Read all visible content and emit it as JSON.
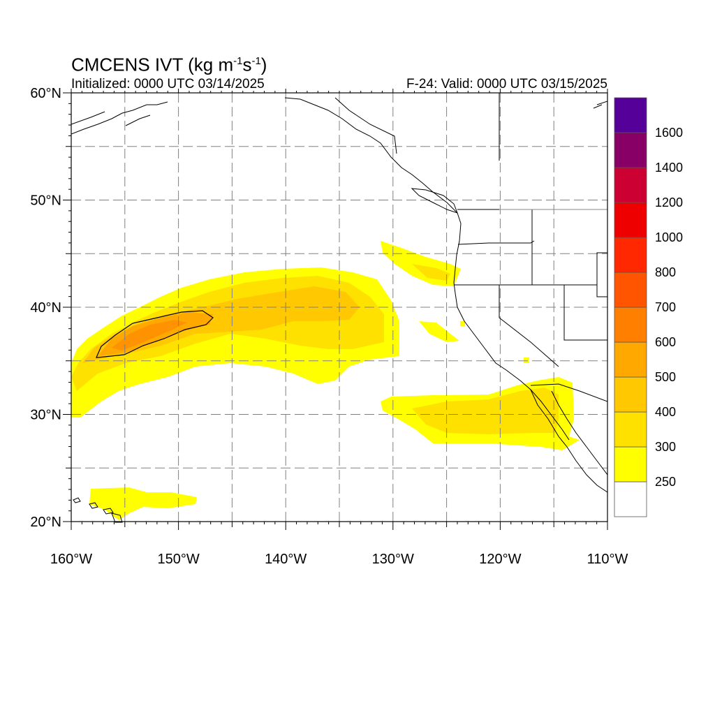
{
  "title": {
    "main": "CMCENS IVT (kg m",
    "sup1": "-1",
    "mid": "s",
    "sup2": "-1",
    "end": ")"
  },
  "subtitle_left": "Initialized: 0000 UTC 03/14/2025",
  "subtitle_right": "F-24: Valid: 0000 UTC 03/15/2025",
  "map": {
    "lon_range": [
      -160,
      -110
    ],
    "lat_range": [
      20,
      60
    ],
    "lon_ticks": [
      {
        "value": -160,
        "label": "160°W"
      },
      {
        "value": -150,
        "label": "150°W"
      },
      {
        "value": -140,
        "label": "140°W"
      },
      {
        "value": -130,
        "label": "130°W"
      },
      {
        "value": -120,
        "label": "120°W"
      },
      {
        "value": -110,
        "label": "110°W"
      }
    ],
    "lat_ticks": [
      {
        "value": 60,
        "label": "60°N"
      },
      {
        "value": 50,
        "label": "50°N"
      },
      {
        "value": 40,
        "label": "40°N"
      },
      {
        "value": 30,
        "label": "30°N"
      },
      {
        "value": 20,
        "label": "20°N"
      }
    ],
    "grid_lon_spacing": 5,
    "grid_lat_spacing": 5
  },
  "colorbar": {
    "levels": [
      250,
      300,
      400,
      500,
      600,
      700,
      800,
      1000,
      1200,
      1400,
      1600
    ],
    "colors": [
      "#ffffff",
      "#ffff00",
      "#ffe100",
      "#ffc800",
      "#ffa800",
      "#ff7f00",
      "#ff5500",
      "#ff2800",
      "#ee0000",
      "#cc0033",
      "#880066",
      "#550099"
    ],
    "labels": [
      "250",
      "300",
      "400",
      "500",
      "600",
      "700",
      "800",
      "1000",
      "1200",
      "1400",
      "1600"
    ]
  }
}
